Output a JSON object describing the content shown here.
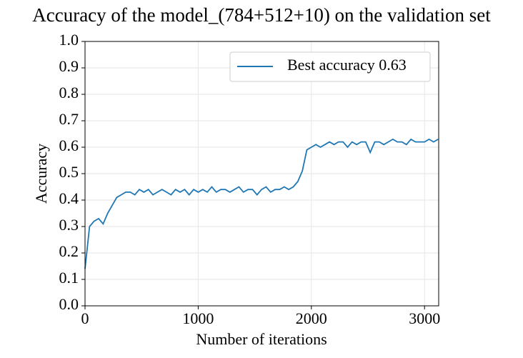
{
  "chart_data": {
    "type": "line",
    "title": "Accuracy of the model_(784+512+10) on the validation set",
    "x_label": "Number of iterations",
    "y_label": "Accuracy",
    "x": [
      0,
      40,
      80,
      120,
      160,
      200,
      240,
      280,
      320,
      360,
      400,
      440,
      480,
      520,
      560,
      600,
      640,
      680,
      720,
      760,
      800,
      840,
      880,
      920,
      960,
      1000,
      1040,
      1080,
      1120,
      1160,
      1200,
      1240,
      1280,
      1320,
      1360,
      1400,
      1440,
      1480,
      1520,
      1560,
      1600,
      1640,
      1680,
      1720,
      1760,
      1800,
      1840,
      1880,
      1920,
      1960,
      2000,
      2040,
      2080,
      2120,
      2160,
      2200,
      2240,
      2280,
      2320,
      2360,
      2400,
      2440,
      2480,
      2520,
      2560,
      2600,
      2640,
      2680,
      2720,
      2760,
      2800,
      2840,
      2880,
      2920,
      2960,
      3000,
      3040,
      3080,
      3120
    ],
    "series": [
      {
        "name": "Best accuracy 0.63",
        "color": "#1f77b4",
        "values": [
          0.14,
          0.3,
          0.32,
          0.33,
          0.31,
          0.35,
          0.38,
          0.41,
          0.42,
          0.43,
          0.43,
          0.42,
          0.44,
          0.43,
          0.44,
          0.42,
          0.43,
          0.44,
          0.43,
          0.42,
          0.44,
          0.43,
          0.44,
          0.42,
          0.44,
          0.43,
          0.44,
          0.43,
          0.45,
          0.43,
          0.44,
          0.44,
          0.43,
          0.44,
          0.45,
          0.43,
          0.44,
          0.44,
          0.42,
          0.44,
          0.45,
          0.43,
          0.44,
          0.44,
          0.45,
          0.44,
          0.45,
          0.47,
          0.51,
          0.59,
          0.6,
          0.61,
          0.6,
          0.61,
          0.62,
          0.61,
          0.62,
          0.62,
          0.6,
          0.62,
          0.61,
          0.62,
          0.62,
          0.58,
          0.62,
          0.62,
          0.61,
          0.62,
          0.63,
          0.62,
          0.62,
          0.61,
          0.63,
          0.62,
          0.62,
          0.62,
          0.63,
          0.62,
          0.63
        ]
      }
    ],
    "xlim": [
      0,
      3125
    ],
    "xticks": [
      0,
      1000,
      2000,
      3000
    ],
    "ylim": [
      0,
      1
    ],
    "yticks": [
      {
        "value": 0,
        "label": "0.0"
      },
      0.1,
      0.2,
      0.3,
      0.4,
      0.5,
      0.6,
      0.7,
      0.8,
      0.9,
      {
        "value": 1,
        "label": "1.0"
      }
    ],
    "grid": true,
    "legend": "upper right"
  }
}
